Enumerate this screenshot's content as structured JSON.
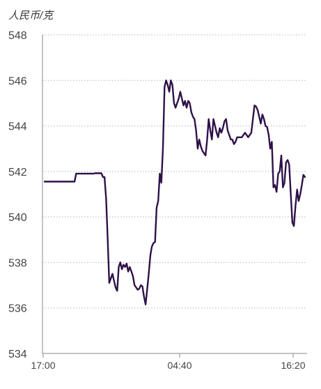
{
  "chart_data": {
    "type": "line",
    "unit_label": "人民币/克",
    "x_ticks": [
      "17:00",
      "04:40",
      "16:20"
    ],
    "y_ticks": [
      534,
      536,
      538,
      540,
      542,
      544,
      546,
      548
    ],
    "ylim": [
      534,
      548
    ],
    "grid": "horizontal-dotted",
    "line_color": "#2e1148",
    "series": [
      {
        "values": [
          541.55,
          541.55,
          541.55,
          541.55,
          541.55,
          541.55,
          541.55,
          541.55,
          541.55,
          541.55,
          541.55,
          541.55,
          541.55,
          541.55,
          541.55,
          541.55,
          541.55,
          541.55,
          541.55,
          541.55,
          541.9,
          541.9,
          541.9,
          541.9,
          541.9,
          541.9,
          541.9,
          541.9,
          541.9,
          541.9,
          541.9,
          541.9,
          541.92,
          541.92,
          541.92,
          541.92,
          541.92,
          541.75,
          541.75,
          540.8,
          539.0,
          537.1,
          537.3,
          537.5,
          537.2,
          536.9,
          536.75,
          537.8,
          538.0,
          537.7,
          537.9,
          537.8,
          537.95,
          537.6,
          537.8,
          537.6,
          537.4,
          537.0,
          536.9,
          536.8,
          536.85,
          537.0,
          536.95,
          536.5,
          536.15,
          536.8,
          537.5,
          538.3,
          538.7,
          538.85,
          538.9,
          540.4,
          540.7,
          541.9,
          541.5,
          543.0,
          545.7,
          546.0,
          545.8,
          545.5,
          546.0,
          545.8,
          545.0,
          544.8,
          545.0,
          545.2,
          545.5,
          545.2,
          544.9,
          545.1,
          544.8,
          545.1,
          545.0,
          544.6,
          544.4,
          544.3,
          543.8,
          543.0,
          543.4,
          543.1,
          542.9,
          542.8,
          542.7,
          543.4,
          544.3,
          543.8,
          543.4,
          544.3,
          544.0,
          543.7,
          543.5,
          543.9,
          543.7,
          543.9,
          544.2,
          544.3,
          543.8,
          543.6,
          543.4,
          543.4,
          543.2,
          543.3,
          543.5,
          543.5,
          543.5,
          543.5,
          543.6,
          543.7,
          543.6,
          543.5,
          543.6,
          543.7,
          544.3,
          544.9,
          544.85,
          544.7,
          544.4,
          544.1,
          544.5,
          544.3,
          544.0,
          543.95,
          543.6,
          543.0,
          543.3,
          541.3,
          541.4,
          541.1,
          541.9,
          542.0,
          542.7,
          541.3,
          541.5,
          542.4,
          542.5,
          542.3,
          541.0,
          539.75,
          539.6,
          540.5,
          541.2,
          540.7,
          541.0,
          541.4,
          541.85,
          541.75
        ]
      }
    ]
  }
}
